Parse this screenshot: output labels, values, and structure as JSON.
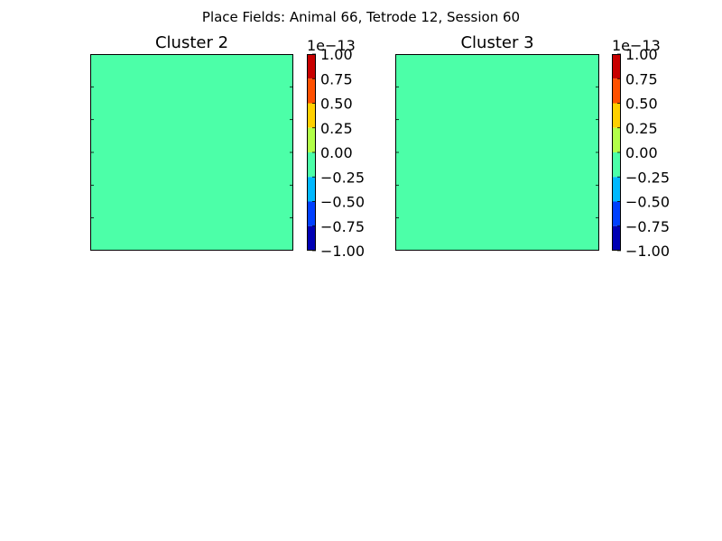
{
  "figure": {
    "suptitle": "Place Fields: Animal 66, Tetrode 12, Session 60"
  },
  "chart_data": [
    {
      "type": "heatmap",
      "title": "Cluster 2",
      "field_color": "#4cffa8",
      "x_ticks_visible": false,
      "y_ticks_visible": false,
      "colorbar": {
        "offset_label": "1e−13",
        "ticks": [
          1.0,
          0.75,
          0.5,
          0.25,
          0.0,
          -0.25,
          -0.5,
          -0.75,
          -1.0
        ],
        "tick_labels": [
          "1.00",
          "0.75",
          "0.50",
          "0.25",
          "0.00",
          "−0.25",
          "−0.50",
          "−0.75",
          "−1.00"
        ],
        "bands": [
          {
            "range": [
              0.75,
              1.0
            ],
            "color": "#c80000"
          },
          {
            "range": [
              0.5,
              0.75
            ],
            "color": "#ff5000"
          },
          {
            "range": [
              0.25,
              0.5
            ],
            "color": "#ffd000"
          },
          {
            "range": [
              0.0,
              0.25
            ],
            "color": "#b2ff48"
          },
          {
            "range": [
              -0.25,
              0.0
            ],
            "color": "#4cffa8"
          },
          {
            "range": [
              -0.5,
              -0.25
            ],
            "color": "#00b8ff"
          },
          {
            "range": [
              -0.75,
              -0.5
            ],
            "color": "#0040ff"
          },
          {
            "range": [
              -1.0,
              -0.75
            ],
            "color": "#0000b4"
          }
        ]
      }
    },
    {
      "type": "heatmap",
      "title": "Cluster 3",
      "field_color": "#4cffa8",
      "x_ticks_visible": false,
      "y_ticks_visible": false,
      "colorbar": {
        "offset_label": "1e−13",
        "ticks": [
          1.0,
          0.75,
          0.5,
          0.25,
          0.0,
          -0.25,
          -0.5,
          -0.75,
          -1.0
        ],
        "tick_labels": [
          "1.00",
          "0.75",
          "0.50",
          "0.25",
          "0.00",
          "−0.25",
          "−0.50",
          "−0.75",
          "−1.00"
        ],
        "bands": [
          {
            "range": [
              0.75,
              1.0
            ],
            "color": "#c80000"
          },
          {
            "range": [
              0.5,
              0.75
            ],
            "color": "#ff5000"
          },
          {
            "range": [
              0.25,
              0.5
            ],
            "color": "#ffd000"
          },
          {
            "range": [
              0.0,
              0.25
            ],
            "color": "#b2ff48"
          },
          {
            "range": [
              -0.25,
              0.0
            ],
            "color": "#4cffa8"
          },
          {
            "range": [
              -0.5,
              -0.25
            ],
            "color": "#00b8ff"
          },
          {
            "range": [
              -0.75,
              -0.5
            ],
            "color": "#0040ff"
          },
          {
            "range": [
              -1.0,
              -0.75
            ],
            "color": "#0000b4"
          }
        ]
      }
    }
  ]
}
